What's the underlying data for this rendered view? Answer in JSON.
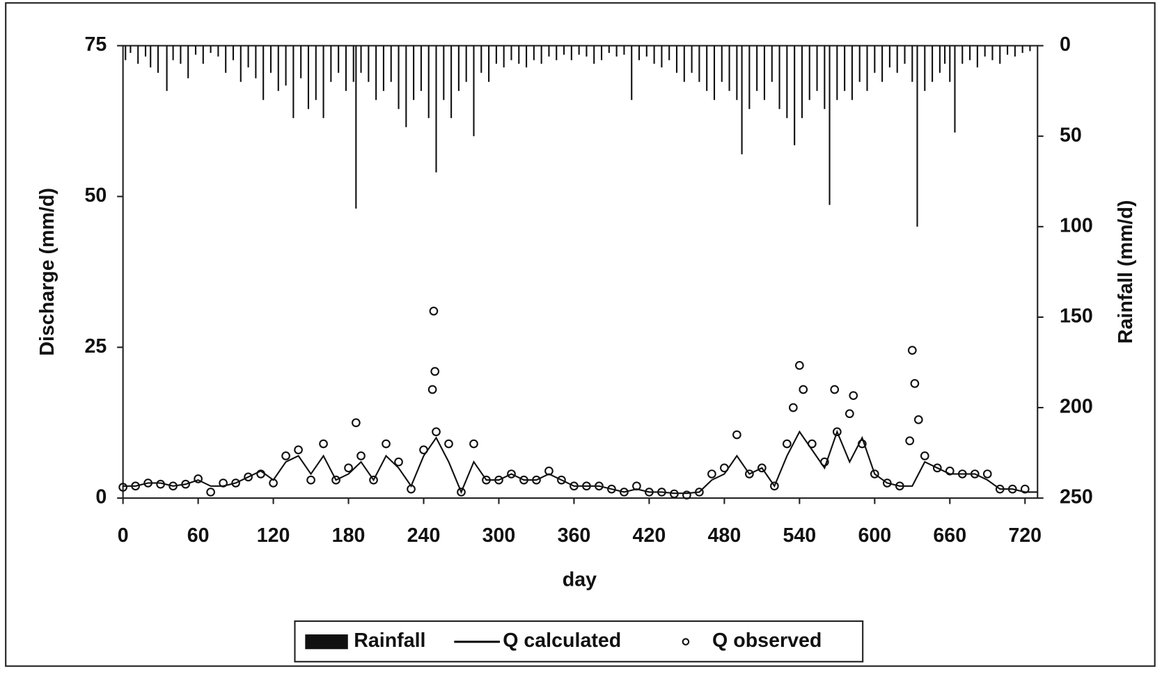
{
  "chart_data": {
    "type": "hydrograph",
    "xlabel": "day",
    "ylabel": "Discharge (mm/d)",
    "y2label": "Rainfall (mm/d)",
    "xlim": [
      0,
      730
    ],
    "xticks": [
      0,
      60,
      120,
      180,
      240,
      300,
      360,
      420,
      480,
      540,
      600,
      660,
      720
    ],
    "ylim": [
      0,
      75
    ],
    "yticks": [
      0,
      25,
      50,
      75
    ],
    "y2lim": [
      0,
      250
    ],
    "y2ticks": [
      0,
      50,
      100,
      150,
      200,
      250
    ],
    "y2_inverted": true,
    "series": [
      {
        "name": "Rainfall",
        "kind": "bar",
        "axis": "y2",
        "color": "#111111",
        "x": [
          2,
          6,
          12,
          18,
          22,
          28,
          35,
          40,
          46,
          52,
          58,
          64,
          70,
          76,
          82,
          88,
          94,
          100,
          106,
          112,
          118,
          124,
          130,
          136,
          142,
          148,
          154,
          160,
          166,
          172,
          178,
          184,
          186,
          190,
          196,
          202,
          208,
          214,
          220,
          226,
          232,
          238,
          244,
          250,
          256,
          262,
          268,
          274,
          280,
          286,
          292,
          298,
          304,
          310,
          316,
          322,
          328,
          334,
          340,
          346,
          352,
          358,
          364,
          370,
          376,
          382,
          388,
          394,
          400,
          406,
          412,
          418,
          424,
          430,
          436,
          442,
          448,
          454,
          460,
          466,
          472,
          478,
          484,
          490,
          494,
          500,
          506,
          512,
          518,
          524,
          530,
          536,
          542,
          548,
          554,
          560,
          564,
          570,
          576,
          582,
          588,
          594,
          600,
          606,
          612,
          618,
          624,
          630,
          634,
          640,
          646,
          652,
          656,
          660,
          664,
          670,
          676,
          682,
          688,
          694,
          700,
          706,
          712,
          718,
          724
        ],
        "values": [
          8,
          4,
          10,
          6,
          12,
          15,
          25,
          8,
          10,
          18,
          5,
          10,
          4,
          6,
          15,
          8,
          20,
          12,
          18,
          30,
          15,
          25,
          22,
          40,
          18,
          35,
          30,
          40,
          20,
          15,
          25,
          20,
          90,
          15,
          20,
          30,
          25,
          20,
          35,
          45,
          30,
          25,
          40,
          70,
          30,
          40,
          25,
          20,
          50,
          15,
          20,
          10,
          12,
          8,
          10,
          12,
          8,
          10,
          6,
          8,
          5,
          8,
          5,
          6,
          10,
          8,
          4,
          6,
          5,
          30,
          8,
          6,
          10,
          12,
          8,
          15,
          20,
          15,
          20,
          25,
          30,
          20,
          25,
          30,
          60,
          35,
          25,
          30,
          20,
          35,
          40,
          55,
          40,
          30,
          25,
          35,
          88,
          30,
          25,
          30,
          20,
          25,
          15,
          20,
          12,
          15,
          10,
          20,
          100,
          25,
          20,
          15,
          10,
          20,
          48,
          10,
          8,
          12,
          6,
          8,
          10,
          5,
          6,
          4,
          3
        ]
      },
      {
        "name": "Q calculated",
        "kind": "line",
        "color": "#111111",
        "x": [
          0,
          10,
          20,
          30,
          40,
          50,
          60,
          70,
          80,
          90,
          100,
          110,
          120,
          130,
          140,
          150,
          160,
          170,
          180,
          190,
          200,
          210,
          220,
          230,
          240,
          250,
          260,
          270,
          280,
          290,
          300,
          310,
          320,
          330,
          340,
          350,
          360,
          370,
          380,
          390,
          400,
          410,
          420,
          430,
          440,
          450,
          460,
          470,
          480,
          490,
          500,
          510,
          520,
          530,
          540,
          550,
          560,
          570,
          580,
          590,
          600,
          610,
          620,
          630,
          640,
          650,
          660,
          670,
          680,
          690,
          700,
          710,
          720,
          730
        ],
        "values": [
          2,
          2,
          2.5,
          2.5,
          2,
          2.3,
          3,
          2,
          2,
          2.5,
          3.5,
          4.5,
          3,
          6,
          7,
          4,
          7,
          3,
          4,
          6,
          3,
          7,
          5,
          2,
          7,
          10,
          6,
          1,
          6,
          3,
          3,
          4,
          3,
          3,
          4,
          3,
          2,
          2,
          2,
          1.5,
          1,
          1.5,
          1,
          1,
          0.8,
          0.8,
          1,
          3,
          4,
          7,
          4,
          5,
          2,
          7,
          11,
          8,
          5,
          11,
          6,
          10,
          4,
          2.5,
          2,
          2,
          6,
          5,
          4,
          4,
          4,
          3,
          1.5,
          1.5,
          1,
          1
        ]
      },
      {
        "name": "Q observed",
        "kind": "points",
        "color": "#111111",
        "x": [
          0,
          10,
          20,
          30,
          40,
          50,
          60,
          70,
          80,
          90,
          100,
          110,
          120,
          130,
          140,
          150,
          160,
          170,
          180,
          186,
          190,
          200,
          210,
          220,
          230,
          240,
          247,
          248,
          249,
          250,
          260,
          270,
          280,
          290,
          300,
          310,
          320,
          330,
          340,
          350,
          360,
          370,
          380,
          390,
          400,
          410,
          420,
          430,
          440,
          450,
          460,
          470,
          480,
          490,
          500,
          510,
          520,
          530,
          535,
          540,
          543,
          550,
          560,
          568,
          570,
          580,
          583,
          590,
          600,
          610,
          620,
          628,
          630,
          632,
          635,
          640,
          650,
          660,
          670,
          680,
          690,
          700,
          710,
          720
        ],
        "values": [
          1.8,
          2,
          2.5,
          2.3,
          2,
          2.3,
          3.2,
          1,
          2.5,
          2.5,
          3.5,
          4,
          2.5,
          7,
          8,
          3,
          9,
          3,
          5,
          12.5,
          7,
          3,
          9,
          6,
          1.5,
          8,
          18,
          31,
          21,
          11,
          9,
          1,
          9,
          3,
          3,
          4,
          3,
          3,
          4.5,
          3,
          2,
          2,
          2,
          1.5,
          1,
          2,
          1,
          1,
          0.7,
          0.5,
          1,
          4,
          5,
          10.5,
          4,
          5,
          2,
          9,
          15,
          22,
          18,
          9,
          6,
          18,
          11,
          14,
          17,
          9,
          4,
          2.5,
          2,
          9.5,
          24.5,
          19,
          13,
          7,
          5,
          4.5,
          4,
          4,
          4,
          1.5,
          1.5,
          1.5
        ]
      }
    ]
  }
}
